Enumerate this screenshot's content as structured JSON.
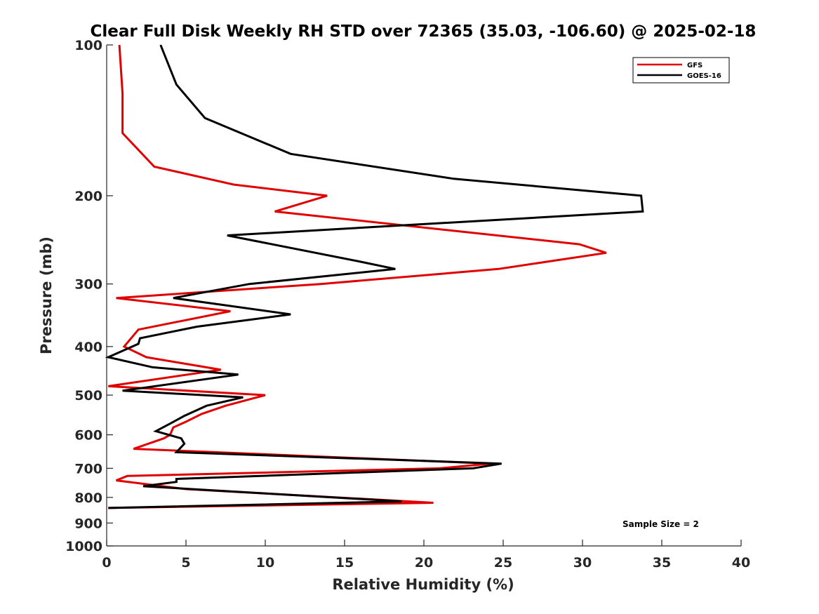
{
  "chart_data": {
    "type": "line",
    "title": "Clear Full Disk Weekly RH STD over 72365 (35.03, -106.60) @ 2025-02-18",
    "xlabel": "Relative Humidity (%)",
    "ylabel": "Pressure (mb)",
    "xlim": [
      0,
      40
    ],
    "ylim": [
      100,
      1000
    ],
    "y_scale": "log",
    "y_reversed": true,
    "x_ticks": [
      0,
      5,
      10,
      15,
      20,
      25,
      30,
      35,
      40
    ],
    "y_ticks": [
      100,
      200,
      300,
      400,
      500,
      600,
      700,
      800,
      900,
      1000
    ],
    "grid": false,
    "legend_position": "top-right",
    "annotation": "Sample Size = 2",
    "series": [
      {
        "name": "GFS",
        "color": "#e00000",
        "points": [
          [
            0.8,
            100
          ],
          [
            1.0,
            125
          ],
          [
            1.0,
            150
          ],
          [
            3.0,
            175
          ],
          [
            8.0,
            190
          ],
          [
            13.9,
            200
          ],
          [
            10.6,
            215
          ],
          [
            29.8,
            250
          ],
          [
            31.5,
            260
          ],
          [
            24.7,
            280
          ],
          [
            13.5,
            300
          ],
          [
            0.6,
            320
          ],
          [
            7.8,
            340
          ],
          [
            2.0,
            370
          ],
          [
            1.1,
            400
          ],
          [
            2.5,
            420
          ],
          [
            7.2,
            445
          ],
          [
            0.1,
            480
          ],
          [
            10.0,
            500
          ],
          [
            7.5,
            525
          ],
          [
            6.0,
            545
          ],
          [
            5.0,
            565
          ],
          [
            4.2,
            580
          ],
          [
            4.0,
            600
          ],
          [
            3.6,
            610
          ],
          [
            1.7,
            640
          ],
          [
            24.2,
            685
          ],
          [
            21.0,
            700
          ],
          [
            1.3,
            725
          ],
          [
            0.6,
            740
          ],
          [
            5.0,
            770
          ],
          [
            20.6,
            820
          ],
          [
            0.1,
            840
          ]
        ]
      },
      {
        "name": "GOES-16",
        "color": "#000000",
        "points": [
          [
            3.4,
            100
          ],
          [
            4.4,
            120
          ],
          [
            6.2,
            140
          ],
          [
            11.6,
            165
          ],
          [
            21.9,
            185
          ],
          [
            33.7,
            200
          ],
          [
            33.8,
            215
          ],
          [
            7.6,
            240
          ],
          [
            15.8,
            270
          ],
          [
            18.2,
            280
          ],
          [
            9.0,
            300
          ],
          [
            4.2,
            320
          ],
          [
            11.6,
            345
          ],
          [
            5.7,
            365
          ],
          [
            2.1,
            385
          ],
          [
            2.0,
            395
          ],
          [
            0.1,
            420
          ],
          [
            2.9,
            440
          ],
          [
            8.3,
            455
          ],
          [
            1.0,
            490
          ],
          [
            8.6,
            505
          ],
          [
            6.3,
            525
          ],
          [
            4.9,
            550
          ],
          [
            4.0,
            570
          ],
          [
            3.1,
            590
          ],
          [
            4.7,
            610
          ],
          [
            4.9,
            625
          ],
          [
            4.4,
            650
          ],
          [
            24.9,
            685
          ],
          [
            23.1,
            700
          ],
          [
            4.4,
            735
          ],
          [
            4.4,
            745
          ],
          [
            2.3,
            760
          ],
          [
            18.6,
            815
          ],
          [
            0.1,
            840
          ]
        ]
      }
    ]
  }
}
